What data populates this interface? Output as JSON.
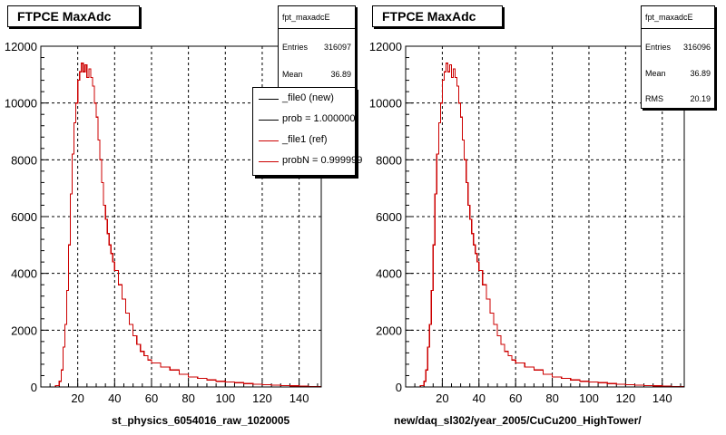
{
  "pads": [
    {
      "title": "FTPCE MaxAdc",
      "xlabel": "st_physics_6054016_raw_1020005",
      "stats": {
        "name": "fpt_maxadcE",
        "entries_label": "Entries",
        "entries": "316097",
        "mean_label": "Mean",
        "mean": "36.89"
      },
      "legend": [
        {
          "text": "_file0 (new)",
          "color": "#000000"
        },
        {
          "text": "prob = 1.000000",
          "color": "#000000"
        },
        {
          "text": "_file1 (ref)",
          "color": "#cc0000"
        },
        {
          "text": "probN = 0.999999",
          "color": "#cc0000"
        }
      ]
    },
    {
      "title": "FTPCE MaxAdc",
      "xlabel": "new/daq_sl302/year_2005/CuCu200_HighTower/",
      "stats": {
        "name": "fpt_maxadcE",
        "entries_label": "Entries",
        "entries": "316096",
        "mean_label": "Mean",
        "mean": "36.89",
        "rms_label": "RMS",
        "rms": "20.19"
      }
    }
  ],
  "chart_data": {
    "type": "line",
    "style": "step-histogram",
    "xlim": [
      0,
      152
    ],
    "ylim": [
      0,
      12000
    ],
    "xticks": [
      20,
      40,
      60,
      80,
      100,
      120,
      140
    ],
    "yticks": [
      0,
      2000,
      4000,
      6000,
      8000,
      10000,
      12000
    ],
    "grid": true,
    "bin_width": 1,
    "series": [
      {
        "color": "#cc0000",
        "x": [
          0,
          5,
          8,
          10,
          11,
          12,
          13,
          14,
          15,
          16,
          17,
          18,
          19,
          20,
          21,
          22,
          23,
          24,
          25,
          26,
          27,
          28,
          29,
          30,
          31,
          32,
          33,
          34,
          35,
          36,
          37,
          38,
          39,
          40,
          42,
          44,
          46,
          48,
          50,
          52,
          54,
          56,
          58,
          60,
          65,
          70,
          75,
          80,
          85,
          90,
          95,
          100,
          105,
          110,
          115,
          120,
          125,
          130,
          135,
          140,
          145,
          151
        ],
        "y": [
          0,
          0,
          50,
          200,
          600,
          1400,
          2200,
          3400,
          5000,
          6800,
          8200,
          9300,
          10000,
          10800,
          11100,
          11400,
          11100,
          11350,
          10900,
          11200,
          10900,
          10600,
          10000,
          9500,
          8700,
          8000,
          7200,
          6400,
          5900,
          5400,
          5000,
          4700,
          4400,
          4100,
          3600,
          3100,
          2600,
          2200,
          1800,
          1500,
          1250,
          1100,
          950,
          850,
          700,
          600,
          450,
          350,
          300,
          250,
          200,
          180,
          150,
          120,
          100,
          80,
          60,
          50,
          40,
          30,
          20,
          10
        ]
      }
    ]
  }
}
